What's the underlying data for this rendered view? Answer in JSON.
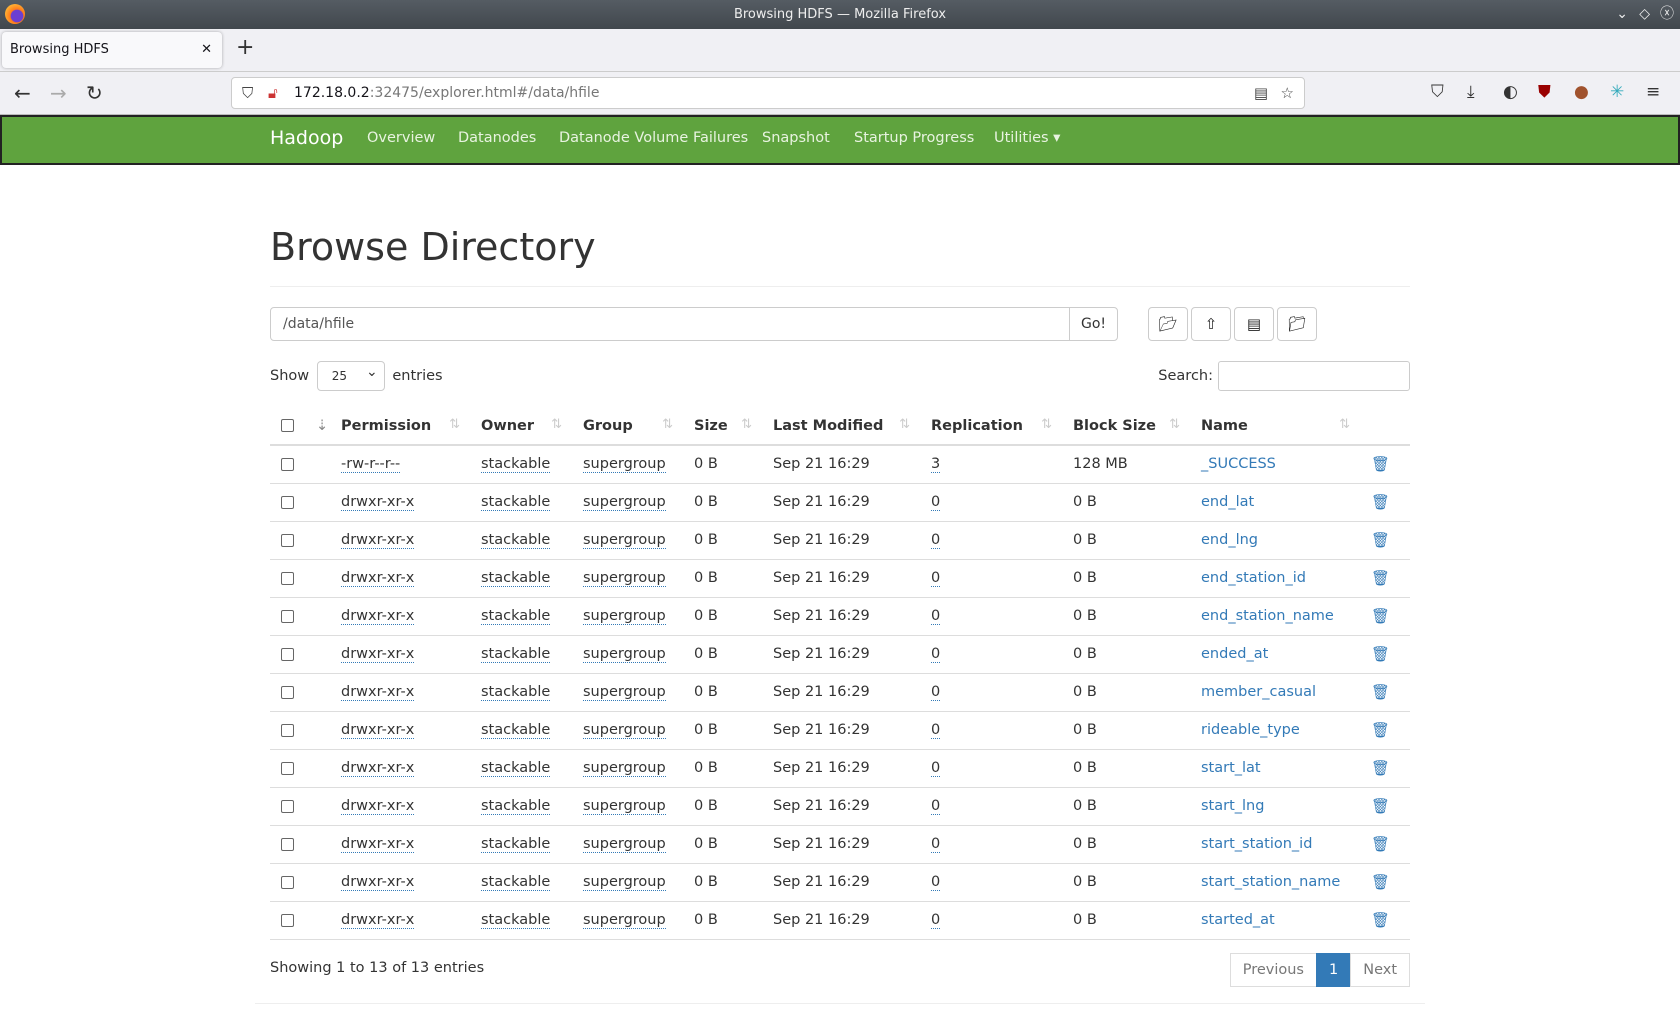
{
  "window": {
    "title": "Browsing HDFS — Mozilla Firefox"
  },
  "browser": {
    "tab_title": "Browsing HDFS",
    "url_host": "172.18.0.2",
    "url_rest": ":32475/explorer.html#/data/hfile"
  },
  "nav": {
    "brand": "Hadoop",
    "items": [
      "Overview",
      "Datanodes",
      "Datanode Volume Failures",
      "Snapshot",
      "Startup Progress",
      "Utilities ▾"
    ]
  },
  "page": {
    "title": "Browse Directory",
    "path_value": "/data/hfile",
    "go_label": "Go!",
    "show_label": "Show",
    "entries_value": "25",
    "entries_label": "entries",
    "search_label": "Search:"
  },
  "table": {
    "headers": [
      "Permission",
      "Owner",
      "Group",
      "Size",
      "Last Modified",
      "Replication",
      "Block Size",
      "Name"
    ],
    "rows": [
      [
        "-rw-r--r--",
        "stackable",
        "supergroup",
        "0 B",
        "Sep 21 16:29",
        "3",
        "128 MB",
        "_SUCCESS"
      ],
      [
        "drwxr-xr-x",
        "stackable",
        "supergroup",
        "0 B",
        "Sep 21 16:29",
        "0",
        "0 B",
        "end_lat"
      ],
      [
        "drwxr-xr-x",
        "stackable",
        "supergroup",
        "0 B",
        "Sep 21 16:29",
        "0",
        "0 B",
        "end_lng"
      ],
      [
        "drwxr-xr-x",
        "stackable",
        "supergroup",
        "0 B",
        "Sep 21 16:29",
        "0",
        "0 B",
        "end_station_id"
      ],
      [
        "drwxr-xr-x",
        "stackable",
        "supergroup",
        "0 B",
        "Sep 21 16:29",
        "0",
        "0 B",
        "end_station_name"
      ],
      [
        "drwxr-xr-x",
        "stackable",
        "supergroup",
        "0 B",
        "Sep 21 16:29",
        "0",
        "0 B",
        "ended_at"
      ],
      [
        "drwxr-xr-x",
        "stackable",
        "supergroup",
        "0 B",
        "Sep 21 16:29",
        "0",
        "0 B",
        "member_casual"
      ],
      [
        "drwxr-xr-x",
        "stackable",
        "supergroup",
        "0 B",
        "Sep 21 16:29",
        "0",
        "0 B",
        "rideable_type"
      ],
      [
        "drwxr-xr-x",
        "stackable",
        "supergroup",
        "0 B",
        "Sep 21 16:29",
        "0",
        "0 B",
        "start_lat"
      ],
      [
        "drwxr-xr-x",
        "stackable",
        "supergroup",
        "0 B",
        "Sep 21 16:29",
        "0",
        "0 B",
        "start_lng"
      ],
      [
        "drwxr-xr-x",
        "stackable",
        "supergroup",
        "0 B",
        "Sep 21 16:29",
        "0",
        "0 B",
        "start_station_id"
      ],
      [
        "drwxr-xr-x",
        "stackable",
        "supergroup",
        "0 B",
        "Sep 21 16:29",
        "0",
        "0 B",
        "start_station_name"
      ],
      [
        "drwxr-xr-x",
        "stackable",
        "supergroup",
        "0 B",
        "Sep 21 16:29",
        "0",
        "0 B",
        "started_at"
      ]
    ]
  },
  "footer": {
    "info": "Showing 1 to 13 of 13 entries",
    "prev": "Previous",
    "page": "1",
    "next": "Next"
  },
  "colors": {
    "navbar": "#5fa33e",
    "link": "#337ab7"
  }
}
